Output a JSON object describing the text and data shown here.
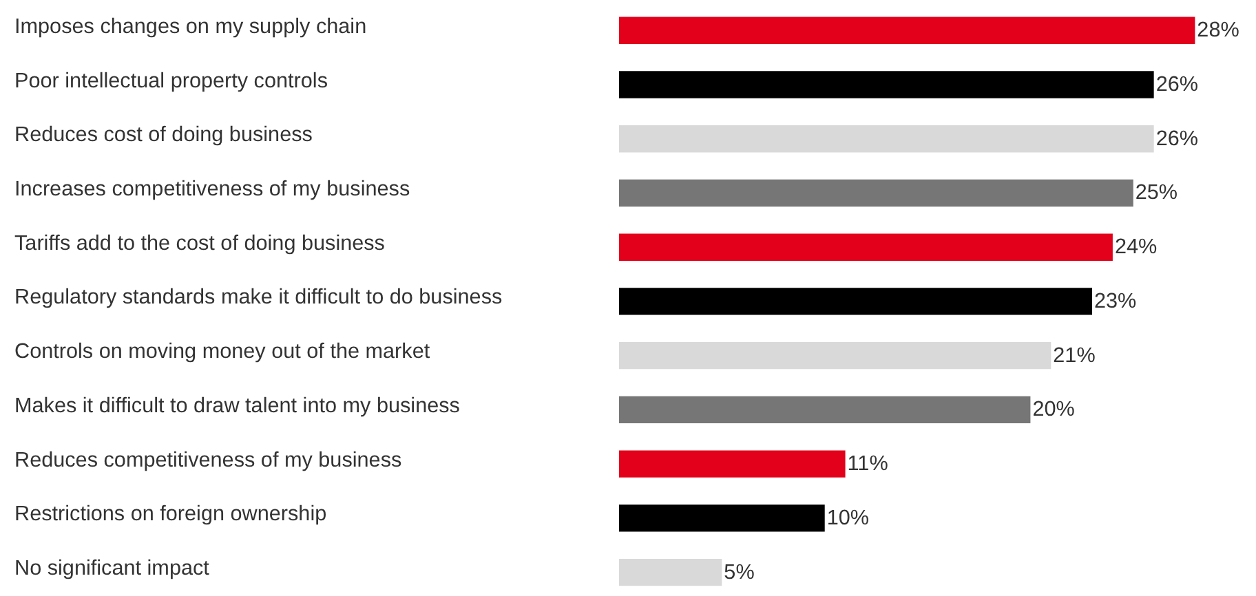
{
  "chart_data": {
    "type": "bar",
    "orientation": "horizontal",
    "categories": [
      "Imposes changes on my supply chain",
      "Poor intellectual property controls",
      "Reduces cost of doing business",
      "Increases competitiveness of my business",
      "Tariffs add to the cost of doing business",
      "Regulatory standards make it difficult to do business",
      "Controls on moving money out of the market",
      "Makes it difficult to draw talent into my business",
      "Reduces competitiveness of my business",
      "Restrictions on foreign ownership",
      "No significant impact"
    ],
    "values": [
      28,
      26,
      26,
      25,
      24,
      23,
      21,
      20,
      11,
      10,
      5
    ],
    "value_labels": [
      "28%",
      "26%",
      "26%",
      "25%",
      "24%",
      "23%",
      "21%",
      "20%",
      "11%",
      "10%",
      "5%"
    ],
    "colors": [
      "#e2001a",
      "#000000",
      "#d9d9d9",
      "#767676",
      "#e2001a",
      "#000000",
      "#d9d9d9",
      "#767676",
      "#e2001a",
      "#000000",
      "#d9d9d9"
    ],
    "xlim": [
      0,
      31
    ],
    "tick_labels": false,
    "grid": false
  }
}
